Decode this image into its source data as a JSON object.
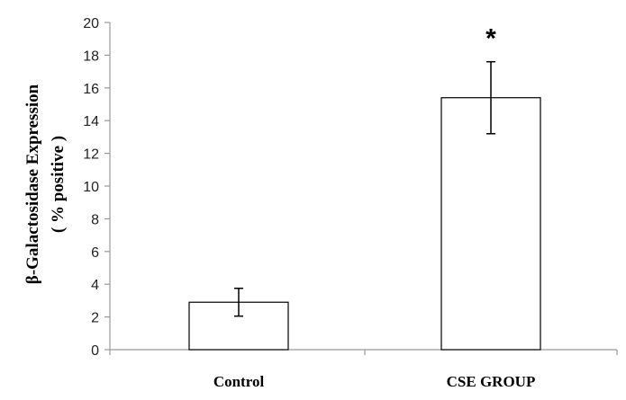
{
  "chart_data": {
    "type": "bar",
    "categories": [
      "Control",
      "CSE GROUP"
    ],
    "values": [
      2.9,
      15.4
    ],
    "errors": [
      0.85,
      2.2
    ],
    "annotations": [
      "",
      "*"
    ],
    "xlabel": "",
    "ylabel_lines": [
      "β-Galactosidase Expression",
      "( % positive )"
    ],
    "ylim": [
      0,
      20
    ],
    "yticks": [
      0,
      2,
      4,
      6,
      8,
      10,
      12,
      14,
      16,
      18,
      20
    ],
    "grid": false
  }
}
